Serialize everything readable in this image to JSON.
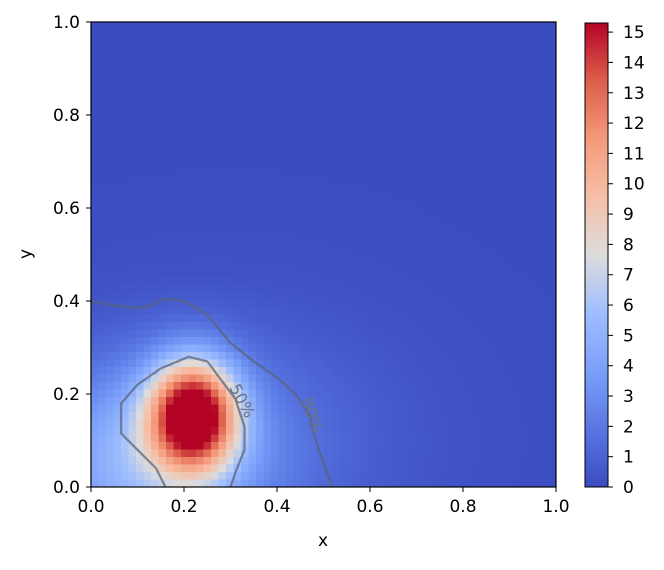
{
  "chart_data": {
    "type": "heatmap",
    "title": "",
    "xlabel": "x",
    "ylabel": "y",
    "xlim": [
      0.0,
      1.0
    ],
    "ylim": [
      0.0,
      1.0
    ],
    "x_ticks": [
      "0.0",
      "0.2",
      "0.4",
      "0.6",
      "0.8",
      "1.0"
    ],
    "y_ticks": [
      "0.0",
      "0.2",
      "0.4",
      "0.6",
      "0.8",
      "1.0"
    ],
    "grid": false,
    "colormap": "coolwarm",
    "colorbar": {
      "range": [
        0,
        15.3
      ],
      "ticks": [
        "0",
        "1",
        "2",
        "3",
        "4",
        "5",
        "6",
        "7",
        "8",
        "9",
        "10",
        "11",
        "12",
        "13",
        "14",
        "15"
      ]
    },
    "peak": {
      "x": 0.22,
      "y": 0.155,
      "value": 15.3
    },
    "contours": [
      {
        "label": "50%",
        "points": [
          [
            0.16,
            0.0
          ],
          [
            0.14,
            0.04
          ],
          [
            0.1,
            0.08
          ],
          [
            0.065,
            0.115
          ],
          [
            0.065,
            0.18
          ],
          [
            0.1,
            0.22
          ],
          [
            0.15,
            0.255
          ],
          [
            0.21,
            0.28
          ],
          [
            0.25,
            0.27
          ],
          [
            0.28,
            0.23
          ],
          [
            0.31,
            0.19
          ],
          [
            0.33,
            0.13
          ],
          [
            0.33,
            0.08
          ],
          [
            0.31,
            0.03
          ],
          [
            0.3,
            0.0
          ]
        ]
      },
      {
        "label": "90%",
        "points": [
          [
            0.0,
            0.4
          ],
          [
            0.05,
            0.39
          ],
          [
            0.1,
            0.385
          ],
          [
            0.13,
            0.39
          ],
          [
            0.155,
            0.405
          ],
          [
            0.2,
            0.4
          ],
          [
            0.25,
            0.37
          ],
          [
            0.3,
            0.31
          ],
          [
            0.35,
            0.27
          ],
          [
            0.4,
            0.235
          ],
          [
            0.44,
            0.2
          ],
          [
            0.47,
            0.155
          ],
          [
            0.48,
            0.11
          ],
          [
            0.5,
            0.05
          ],
          [
            0.52,
            0.0
          ]
        ]
      }
    ],
    "colors": {
      "contour": "#5a6478",
      "contour_label": "#6b7280",
      "axis": "#000000"
    }
  }
}
